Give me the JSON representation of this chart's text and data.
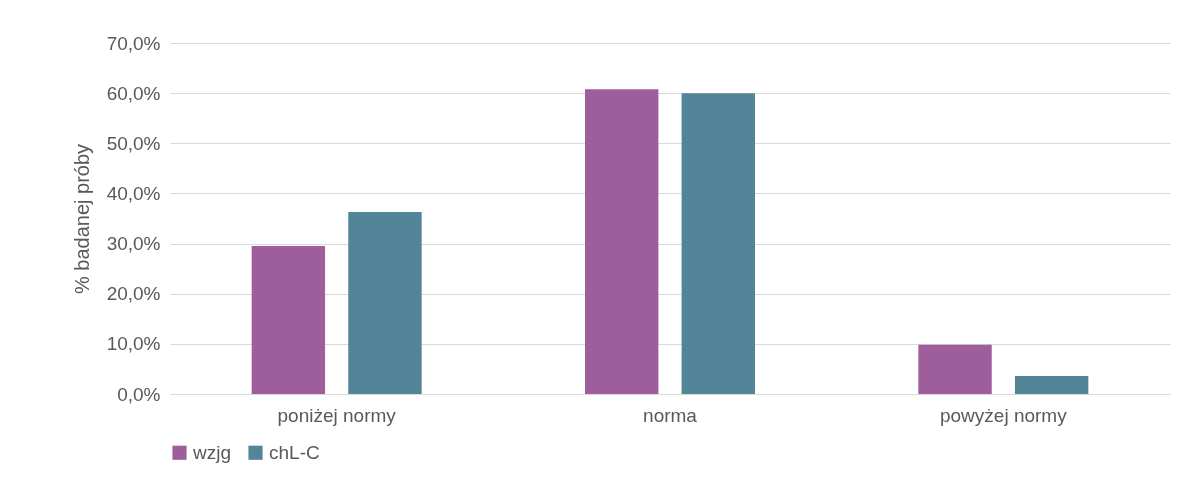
{
  "chart_data": {
    "type": "bar",
    "ylabel": "% badanej próby",
    "categories": [
      "poniżej normy",
      "norma",
      "powyżej normy"
    ],
    "series": [
      {
        "name": "wzjg",
        "color": "#9e5e9b",
        "values": [
          29.5,
          60.8,
          9.8
        ]
      },
      {
        "name": "chL-C",
        "color": "#538599",
        "values": [
          36.3,
          60.0,
          3.6
        ]
      }
    ],
    "ylim": [
      0,
      70
    ],
    "yticks": [
      {
        "value": 0,
        "label": "0,0%"
      },
      {
        "value": 10,
        "label": "10,0%"
      },
      {
        "value": 20,
        "label": "20,0%"
      },
      {
        "value": 30,
        "label": "30,0%"
      },
      {
        "value": 40,
        "label": "40,0%"
      },
      {
        "value": 50,
        "label": "50,0%"
      },
      {
        "value": 60,
        "label": "60,0%"
      },
      {
        "value": 70,
        "label": "70,0%"
      }
    ],
    "grid": "y",
    "legend": "bottom"
  }
}
